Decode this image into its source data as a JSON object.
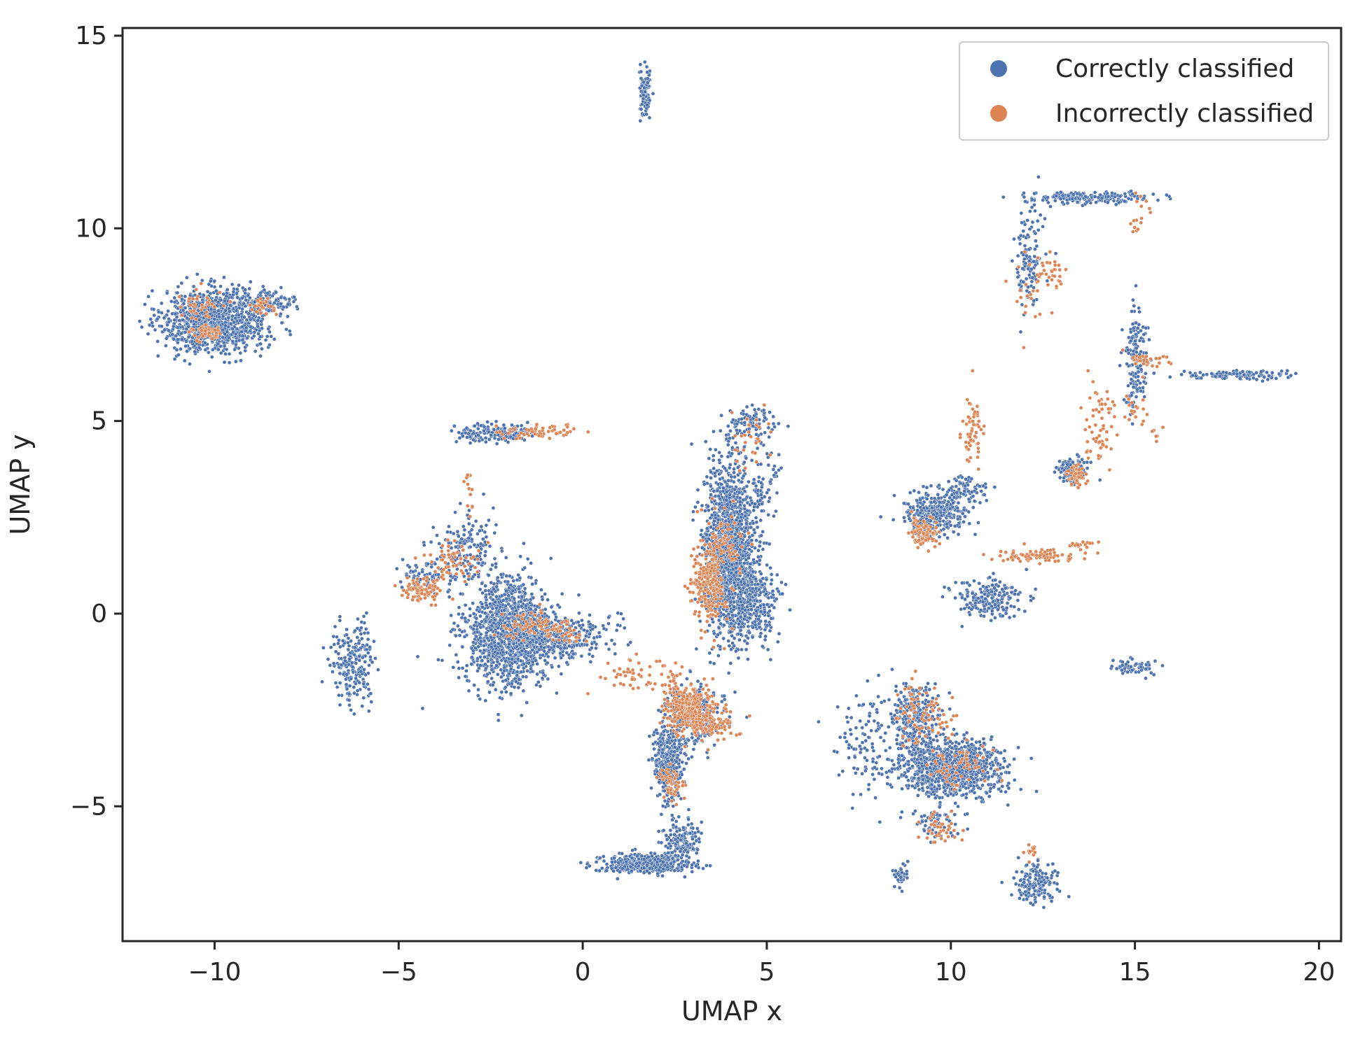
{
  "chart_data": {
    "type": "scatter",
    "title": "",
    "xlabel": "UMAP x",
    "ylabel": "UMAP y",
    "xlim": [
      -12.5,
      20.6
    ],
    "ylim": [
      -8.5,
      15.2
    ],
    "xticks": [
      -10,
      -5,
      0,
      5,
      10,
      15,
      20
    ],
    "yticks": [
      -5,
      0,
      5,
      10,
      15
    ],
    "xtick_labels": [
      "−10",
      "−5",
      "0",
      "5",
      "10",
      "15",
      "20"
    ],
    "ytick_labels": [
      "−5",
      "0",
      "5",
      "10",
      "15"
    ],
    "grid": false,
    "legend_position": "top-right",
    "series": [
      {
        "name": "Correctly classified",
        "color": "#4c72b0",
        "clusters": [
          {
            "cx": -10.0,
            "cy": 7.6,
            "sx": 0.7,
            "sy": 0.4,
            "n": 1100
          },
          {
            "cx": -8.6,
            "cy": 8.1,
            "sx": 0.4,
            "sy": 0.15,
            "n": 120
          },
          {
            "cx": 1.7,
            "cy": 13.5,
            "sx": 0.08,
            "sy": 0.35,
            "n": 90
          },
          {
            "cx": -2.0,
            "cy": -0.5,
            "sx": 0.6,
            "sy": 0.7,
            "n": 1200
          },
          {
            "cx": -0.8,
            "cy": -0.6,
            "sx": 0.8,
            "sy": 0.3,
            "n": 350
          },
          {
            "cx": -3.2,
            "cy": 1.6,
            "sx": 0.4,
            "sy": 0.5,
            "n": 160
          },
          {
            "cx": -2.5,
            "cy": 4.7,
            "sx": 0.5,
            "sy": 0.12,
            "n": 160
          },
          {
            "cx": -4.3,
            "cy": 1.0,
            "sx": 0.3,
            "sy": 0.2,
            "n": 60
          },
          {
            "cx": -6.2,
            "cy": -1.3,
            "sx": 0.3,
            "sy": 0.5,
            "n": 220
          },
          {
            "cx": 4.0,
            "cy": 1.7,
            "sx": 0.35,
            "sy": 1.1,
            "n": 1500
          },
          {
            "cx": 4.6,
            "cy": 0.3,
            "sx": 0.35,
            "sy": 0.5,
            "n": 300
          },
          {
            "cx": 4.6,
            "cy": 5.0,
            "sx": 0.35,
            "sy": 0.2,
            "n": 90
          },
          {
            "cx": 2.3,
            "cy": -3.9,
            "sx": 0.2,
            "sy": 0.5,
            "n": 350
          },
          {
            "cx": 1.7,
            "cy": -6.5,
            "sx": 0.6,
            "sy": 0.12,
            "n": 450
          },
          {
            "cx": 2.7,
            "cy": -5.9,
            "sx": 0.25,
            "sy": 0.25,
            "n": 150
          },
          {
            "cx": 3.0,
            "cy": -2.7,
            "sx": 0.4,
            "sy": 0.4,
            "n": 250
          },
          {
            "cx": 10.0,
            "cy": -4.0,
            "sx": 0.7,
            "sy": 0.35,
            "n": 900
          },
          {
            "cx": 9.0,
            "cy": -2.8,
            "sx": 0.4,
            "sy": 0.5,
            "n": 300
          },
          {
            "cx": 7.6,
            "cy": -3.5,
            "sx": 0.4,
            "sy": 0.8,
            "n": 100
          },
          {
            "cx": 9.5,
            "cy": 2.6,
            "sx": 0.4,
            "sy": 0.25,
            "n": 280
          },
          {
            "cx": 10.3,
            "cy": 3.2,
            "sx": 0.4,
            "sy": 0.2,
            "n": 100
          },
          {
            "cx": 11.0,
            "cy": 0.4,
            "sx": 0.5,
            "sy": 0.25,
            "n": 200
          },
          {
            "cx": 13.3,
            "cy": 3.7,
            "sx": 0.2,
            "sy": 0.15,
            "n": 120
          },
          {
            "cx": 14.9,
            "cy": -1.4,
            "sx": 0.3,
            "sy": 0.1,
            "n": 60
          },
          {
            "cx": 17.8,
            "cy": 6.2,
            "sx": 0.8,
            "sy": 0.06,
            "n": 120
          },
          {
            "cx": 15.0,
            "cy": 7.0,
            "sx": 0.15,
            "sy": 0.5,
            "n": 90
          },
          {
            "cx": 15.0,
            "cy": 6.0,
            "sx": 0.12,
            "sy": 0.4,
            "n": 60
          },
          {
            "cx": 13.7,
            "cy": 10.8,
            "sx": 0.9,
            "sy": 0.08,
            "n": 180
          },
          {
            "cx": 12.1,
            "cy": 9.2,
            "sx": 0.2,
            "sy": 0.7,
            "n": 120
          },
          {
            "cx": 12.3,
            "cy": -7.0,
            "sx": 0.3,
            "sy": 0.3,
            "n": 150
          },
          {
            "cx": 8.6,
            "cy": -6.8,
            "sx": 0.1,
            "sy": 0.15,
            "n": 40
          },
          {
            "cx": 9.5,
            "cy": -5.4,
            "sx": 0.4,
            "sy": 0.2,
            "n": 60
          },
          {
            "cx": 5.0,
            "cy": 3.5,
            "sx": 0.25,
            "sy": 0.6,
            "n": 60
          }
        ]
      },
      {
        "name": "Incorrectly classified",
        "color": "#dd8452",
        "clusters": [
          {
            "cx": -10.2,
            "cy": 7.3,
            "sx": 0.2,
            "sy": 0.1,
            "n": 60
          },
          {
            "cx": -10.4,
            "cy": 8.0,
            "sx": 0.25,
            "sy": 0.2,
            "n": 40
          },
          {
            "cx": -8.7,
            "cy": 8.0,
            "sx": 0.15,
            "sy": 0.1,
            "n": 30
          },
          {
            "cx": -4.4,
            "cy": 0.6,
            "sx": 0.3,
            "sy": 0.15,
            "n": 80
          },
          {
            "cx": -3.6,
            "cy": 1.3,
            "sx": 0.4,
            "sy": 0.25,
            "n": 60
          },
          {
            "cx": -1.4,
            "cy": -0.3,
            "sx": 0.4,
            "sy": 0.2,
            "n": 60
          },
          {
            "cx": -0.5,
            "cy": -0.5,
            "sx": 0.3,
            "sy": 0.15,
            "n": 40
          },
          {
            "cx": -1.2,
            "cy": 4.7,
            "sx": 0.5,
            "sy": 0.1,
            "n": 60
          },
          {
            "cx": -3.1,
            "cy": 3.3,
            "sx": 0.06,
            "sy": 0.3,
            "n": 15
          },
          {
            "cx": 1.6,
            "cy": -1.6,
            "sx": 0.6,
            "sy": 0.25,
            "n": 60
          },
          {
            "cx": 2.9,
            "cy": -2.4,
            "sx": 0.35,
            "sy": 0.3,
            "n": 320
          },
          {
            "cx": 3.4,
            "cy": -2.9,
            "sx": 0.4,
            "sy": 0.2,
            "n": 120
          },
          {
            "cx": 3.4,
            "cy": 0.7,
            "sx": 0.25,
            "sy": 0.5,
            "n": 220
          },
          {
            "cx": 3.8,
            "cy": 1.8,
            "sx": 0.3,
            "sy": 0.5,
            "n": 80
          },
          {
            "cx": 2.4,
            "cy": -4.4,
            "sx": 0.2,
            "sy": 0.2,
            "n": 60
          },
          {
            "cx": 4.5,
            "cy": 4.4,
            "sx": 0.3,
            "sy": 0.4,
            "n": 30
          },
          {
            "cx": 9.3,
            "cy": 2.1,
            "sx": 0.2,
            "sy": 0.2,
            "n": 100
          },
          {
            "cx": 10.6,
            "cy": 4.8,
            "sx": 0.12,
            "sy": 0.45,
            "n": 60
          },
          {
            "cx": 12.4,
            "cy": 1.5,
            "sx": 0.6,
            "sy": 0.08,
            "n": 80
          },
          {
            "cx": 13.5,
            "cy": 1.8,
            "sx": 0.2,
            "sy": 0.05,
            "n": 15
          },
          {
            "cx": 13.4,
            "cy": 3.6,
            "sx": 0.12,
            "sy": 0.15,
            "n": 60
          },
          {
            "cx": 14.0,
            "cy": 4.8,
            "sx": 0.25,
            "sy": 0.6,
            "n": 60
          },
          {
            "cx": 15.4,
            "cy": 6.6,
            "sx": 0.3,
            "sy": 0.08,
            "n": 30
          },
          {
            "cx": 15.0,
            "cy": 5.2,
            "sx": 0.2,
            "sy": 0.3,
            "n": 20
          },
          {
            "cx": 15.5,
            "cy": 4.6,
            "sx": 0.08,
            "sy": 0.12,
            "n": 6
          },
          {
            "cx": 12.4,
            "cy": 8.5,
            "sx": 0.3,
            "sy": 0.5,
            "n": 40
          },
          {
            "cx": 12.8,
            "cy": 8.8,
            "sx": 0.12,
            "sy": 0.2,
            "n": 15
          },
          {
            "cx": 15.2,
            "cy": 10.6,
            "sx": 0.15,
            "sy": 0.2,
            "n": 10
          },
          {
            "cx": 15.0,
            "cy": 10.1,
            "sx": 0.05,
            "sy": 0.1,
            "n": 6
          },
          {
            "cx": 9.2,
            "cy": -2.6,
            "sx": 0.4,
            "sy": 0.5,
            "n": 80
          },
          {
            "cx": 9.7,
            "cy": -5.6,
            "sx": 0.3,
            "sy": 0.2,
            "n": 40
          },
          {
            "cx": 12.2,
            "cy": -6.2,
            "sx": 0.1,
            "sy": 0.15,
            "n": 12
          },
          {
            "cx": 10.2,
            "cy": -4.0,
            "sx": 0.5,
            "sy": 0.3,
            "n": 60
          }
        ]
      }
    ]
  }
}
